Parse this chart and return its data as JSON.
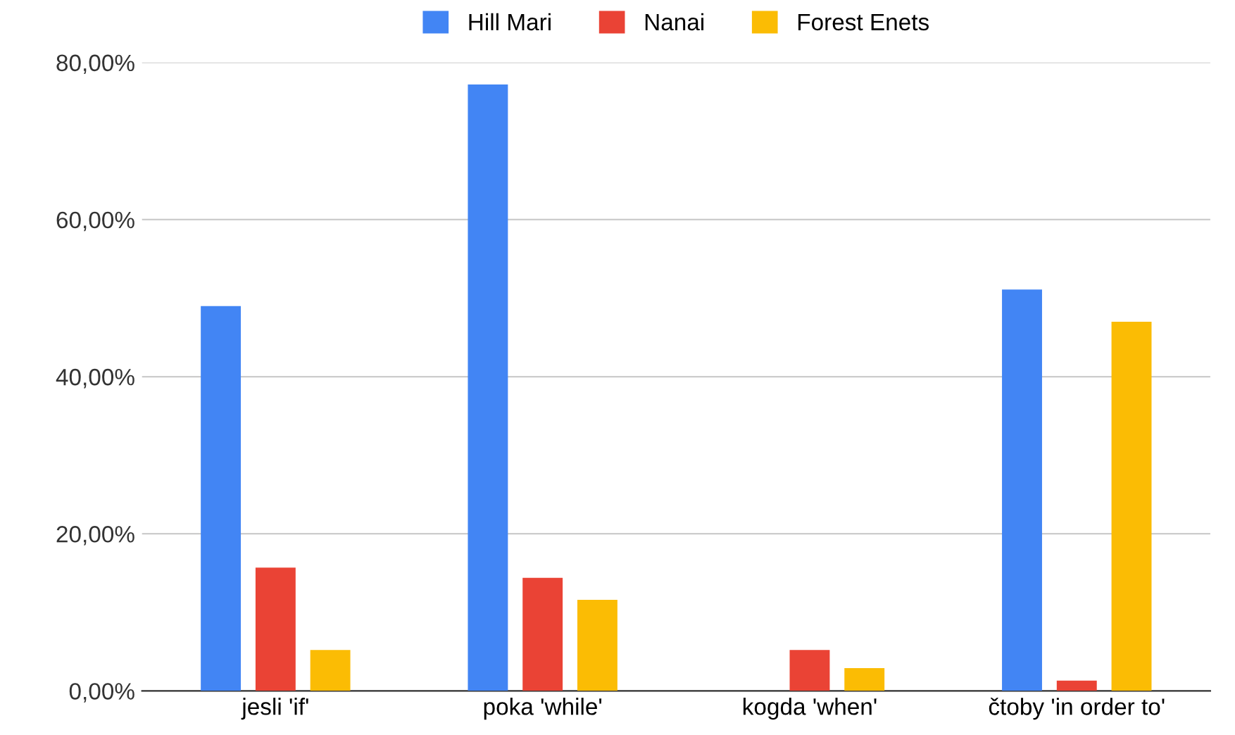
{
  "chart_data": {
    "type": "bar",
    "categories": [
      "jesli 'if'",
      "poka 'while'",
      "kogda 'when'",
      "čtoby 'in order to'"
    ],
    "series": [
      {
        "name": "Hill Mari",
        "color": "#4285f4",
        "values": [
          49.0,
          77.2,
          0,
          51.1
        ]
      },
      {
        "name": "Nanai",
        "color": "#ea4335",
        "values": [
          15.7,
          14.4,
          5.2,
          1.3
        ]
      },
      {
        "name": "Forest Enets",
        "color": "#fbbc04",
        "values": [
          5.2,
          11.6,
          2.9,
          47.0
        ]
      }
    ],
    "ylim": [
      0,
      80
    ],
    "yticks": [
      {
        "value": 0,
        "label": "0,00%"
      },
      {
        "value": 20,
        "label": "20,00%"
      },
      {
        "value": 40,
        "label": "40,00%"
      },
      {
        "value": 60,
        "label": "60,00%"
      },
      {
        "value": 80,
        "label": "80,00%"
      }
    ],
    "grid": "y",
    "legend": "top"
  }
}
